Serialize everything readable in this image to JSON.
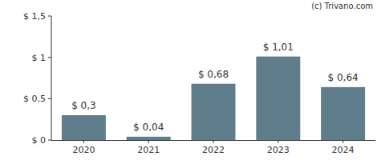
{
  "chart_data": {
    "type": "bar",
    "categories": [
      "2020",
      "2021",
      "2022",
      "2023",
      "2024"
    ],
    "values": [
      0.3,
      0.04,
      0.68,
      1.01,
      0.64
    ],
    "value_labels": [
      "$ 0,3",
      "$ 0,04",
      "$ 0,68",
      "$ 1,01",
      "$ 0,64"
    ],
    "data_labels": true,
    "color": "#607d8b",
    "ylim": [
      0,
      1.5
    ],
    "yticks": [
      {
        "value": 0,
        "label": "$ 0"
      },
      {
        "value": 0.5,
        "label": "$ 0,5"
      },
      {
        "value": 1,
        "label": "$ 1"
      },
      {
        "value": 1.5,
        "label": "$ 1,5"
      }
    ],
    "grid": false,
    "annotations": [
      "(c) Trivano.com"
    ]
  }
}
